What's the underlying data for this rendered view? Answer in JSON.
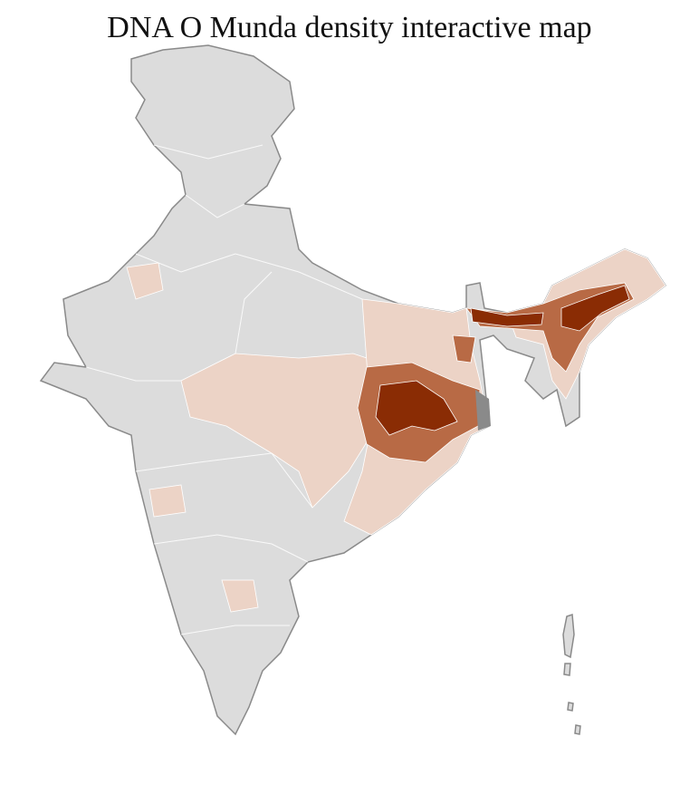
{
  "title": "DNA O Munda density interactive map"
}
